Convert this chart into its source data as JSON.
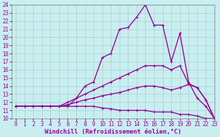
{
  "xlabel": "Windchill (Refroidissement éolien,°C)",
  "xlim": [
    -0.5,
    23
  ],
  "ylim": [
    10,
    24
  ],
  "yticks": [
    10,
    11,
    12,
    13,
    14,
    15,
    16,
    17,
    18,
    19,
    20,
    21,
    22,
    23,
    24
  ],
  "xticks": [
    0,
    1,
    2,
    3,
    4,
    5,
    6,
    7,
    8,
    9,
    10,
    11,
    12,
    13,
    14,
    15,
    16,
    17,
    18,
    19,
    20,
    21,
    22,
    23
  ],
  "background_color": "#c8eef0",
  "grid_color": "#aacccc",
  "line_color": "#990099",
  "line1_x": [
    0,
    1,
    2,
    3,
    4,
    5,
    6,
    7,
    8,
    9,
    10,
    11,
    12,
    13,
    14,
    15,
    16,
    17,
    18,
    19,
    20,
    21,
    22,
    23
  ],
  "line1_y": [
    11.5,
    11.5,
    11.5,
    11.5,
    11.5,
    11.5,
    11.5,
    11.5,
    11.5,
    11.5,
    11.3,
    11.2,
    11.0,
    11.0,
    11.0,
    11.0,
    10.8,
    10.8,
    10.8,
    10.5,
    10.5,
    10.3,
    10.0,
    10.0
  ],
  "line2_x": [
    0,
    1,
    2,
    3,
    4,
    5,
    6,
    7,
    8,
    9,
    10,
    11,
    12,
    13,
    14,
    15,
    16,
    17,
    18,
    19,
    20,
    21,
    22,
    23
  ],
  "line2_y": [
    11.5,
    11.5,
    11.5,
    11.5,
    11.5,
    11.5,
    11.7,
    12.0,
    12.3,
    12.5,
    12.8,
    13.0,
    13.2,
    13.5,
    13.8,
    14.0,
    14.0,
    13.8,
    13.5,
    13.8,
    14.2,
    13.8,
    12.3,
    10.0
  ],
  "line3_x": [
    0,
    1,
    2,
    3,
    4,
    5,
    6,
    7,
    8,
    9,
    10,
    11,
    12,
    13,
    14,
    15,
    16,
    17,
    18,
    19,
    20,
    21,
    22,
    23
  ],
  "line3_y": [
    11.5,
    11.5,
    11.5,
    11.5,
    11.5,
    11.5,
    12.0,
    12.5,
    13.0,
    13.5,
    14.0,
    14.5,
    15.0,
    15.5,
    16.0,
    16.5,
    16.5,
    16.5,
    16.0,
    16.5,
    14.3,
    13.8,
    12.3,
    10.0
  ],
  "line4_x": [
    0,
    1,
    2,
    3,
    4,
    5,
    6,
    7,
    8,
    9,
    10,
    11,
    12,
    13,
    14,
    15,
    16,
    17,
    18,
    19,
    20,
    21,
    22,
    23
  ],
  "line4_y": [
    11.5,
    11.5,
    11.5,
    11.5,
    11.5,
    11.5,
    11.5,
    12.5,
    14.0,
    14.5,
    17.5,
    18.0,
    21.0,
    21.2,
    22.5,
    24.0,
    21.5,
    21.5,
    17.0,
    20.5,
    14.5,
    12.5,
    11.5,
    10.0
  ],
  "marker": "+",
  "markersize": 3,
  "linewidth": 1.0,
  "tick_fontsize": 5.5,
  "xlabel_fontsize": 6.5
}
